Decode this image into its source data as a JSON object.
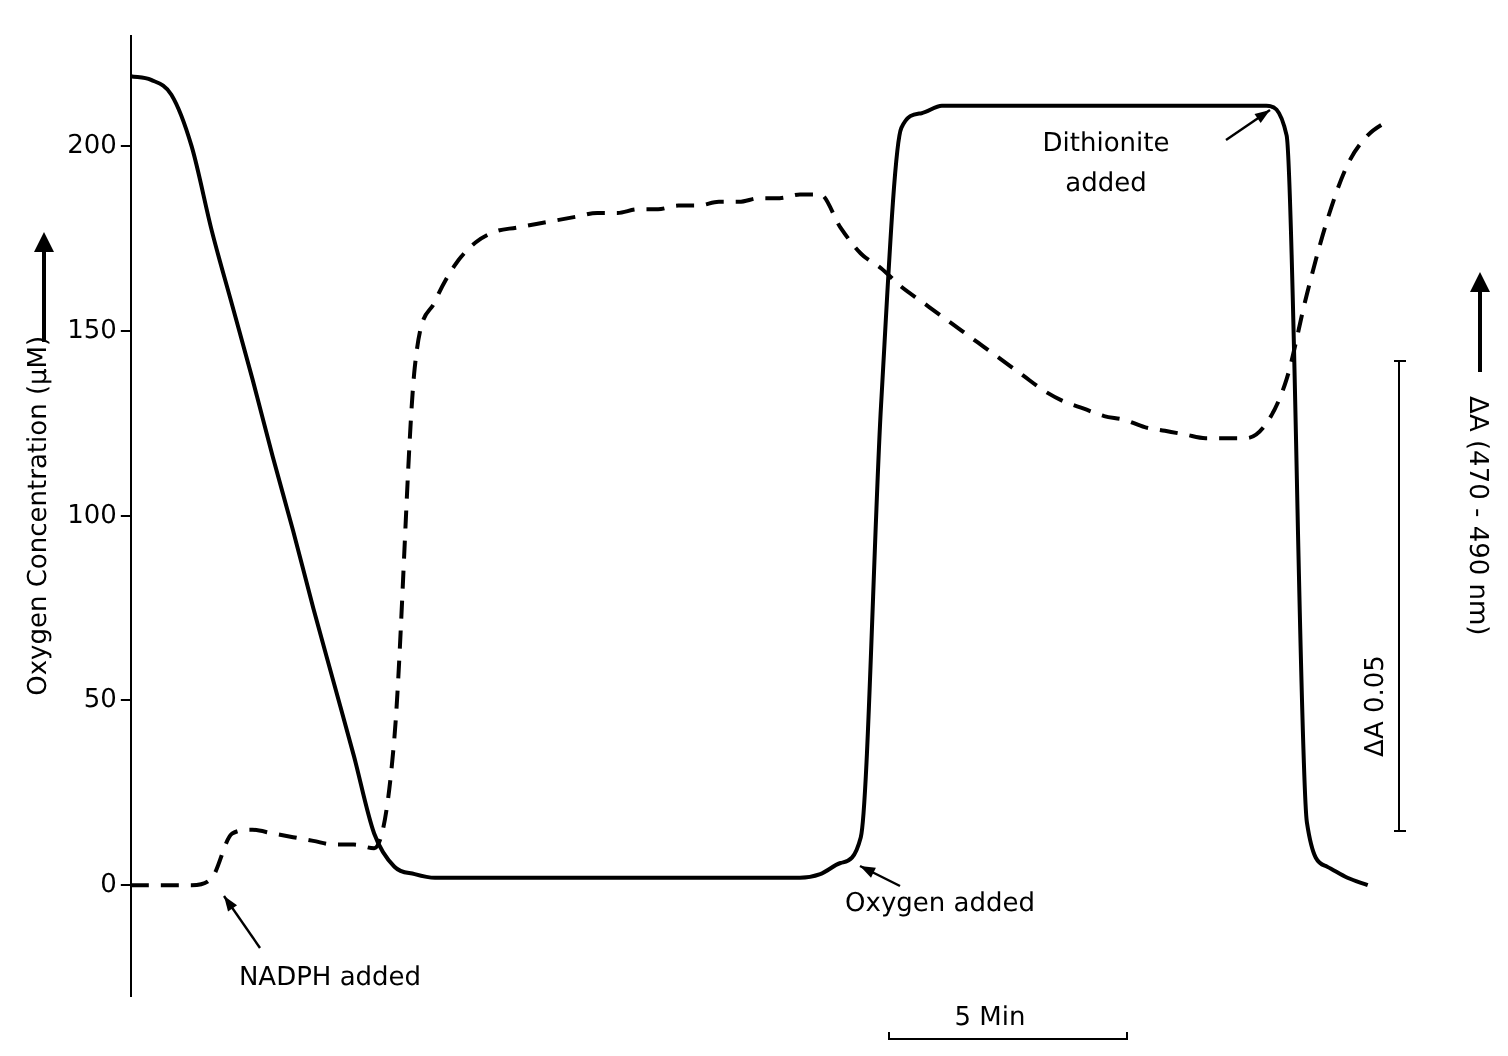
{
  "chart_data": {
    "type": "line",
    "ylabel": "Oxygen Concentration (µM)",
    "y2label": "ΔA (470 - 490 nm)",
    "categories": [
      null,
      null,
      null,
      null,
      null,
      null,
      null,
      null,
      null,
      null,
      null,
      null,
      null,
      null,
      null,
      null,
      null,
      null,
      null,
      null,
      null,
      null,
      null,
      null,
      null,
      null,
      null,
      null,
      null,
      null,
      null,
      null,
      null,
      null,
      null,
      null,
      null,
      null,
      null,
      null,
      null,
      null,
      null,
      null,
      null,
      null,
      null,
      null,
      null,
      null,
      null,
      null,
      null,
      null,
      null,
      null,
      null,
      null,
      null,
      null,
      null,
      null,
      null
    ],
    "series": [
      {
        "color": "#000000",
        "line_style": "solid",
        "values": [
          219,
          218,
          214,
          200,
          177,
          157,
          137,
          116,
          96,
          75,
          55,
          35,
          14,
          5,
          3,
          2,
          2,
          2,
          2,
          2,
          2,
          2,
          2,
          2,
          2,
          2,
          2,
          2,
          2,
          2,
          2,
          2,
          2,
          2,
          3,
          6,
          13,
          130,
          205,
          209,
          211,
          211,
          211,
          211,
          211,
          211,
          211,
          211,
          211,
          211,
          211,
          211,
          211,
          211,
          211,
          211,
          211,
          203,
          17,
          5,
          2,
          0,
          null
        ]
      },
      {
        "color": "#000000",
        "line_style": "dashed",
        "values": [
          0,
          0,
          0,
          0,
          2,
          14,
          15,
          14,
          13,
          12,
          11,
          11,
          10,
          40,
          140,
          158,
          168,
          174,
          177,
          178,
          179,
          180,
          181,
          182,
          182,
          183,
          183,
          184,
          184,
          185,
          185,
          186,
          186,
          187,
          187,
          178,
          171,
          167,
          162,
          158,
          154,
          150,
          146,
          142,
          138,
          134,
          131,
          129,
          127,
          126,
          124,
          123,
          122,
          121,
          121,
          121,
          125,
          137,
          160,
          180,
          195,
          203,
          207
        ]
      }
    ],
    "ylim": [
      -30,
      230
    ],
    "yticks": [
      0,
      50,
      100,
      150,
      200
    ],
    "grid": false,
    "legend": false,
    "marker": "none",
    "annotations": [
      "NADPH added",
      "Oxygen added",
      "Dithionite added",
      "5 Min",
      "ΔA 0.05"
    ]
  }
}
